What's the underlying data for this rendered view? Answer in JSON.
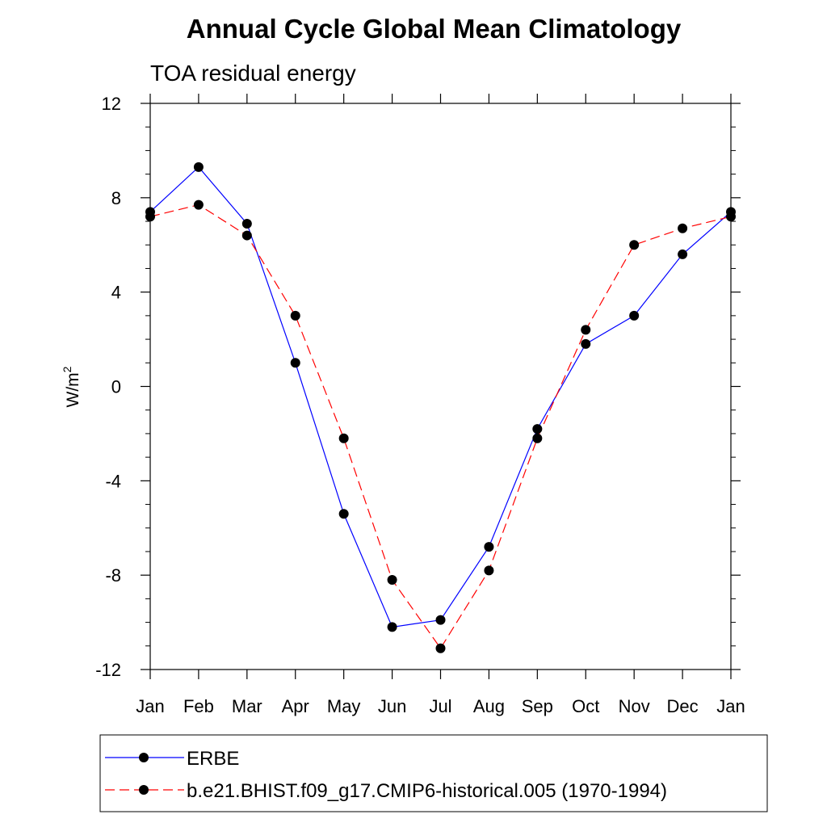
{
  "chart_data": {
    "type": "line",
    "title": "Annual Cycle Global Mean Climatology",
    "subtitle": "TOA residual energy",
    "ylabel": "W/m",
    "ylabel_superscript": "2",
    "ylim": [
      -12,
      12
    ],
    "yticks": [
      12,
      8,
      4,
      0,
      -4,
      -8,
      -12
    ],
    "ytick_labels": [
      "12",
      "8",
      "4",
      "0",
      "-4",
      "-8",
      "-12"
    ],
    "categories": [
      "Jan",
      "Feb",
      "Mar",
      "Apr",
      "May",
      "Jun",
      "Jul",
      "Aug",
      "Sep",
      "Oct",
      "Nov",
      "Dec",
      "Jan"
    ],
    "series": [
      {
        "name": "ERBE",
        "color": "#0000ff",
        "dash": "solid",
        "values": [
          7.4,
          9.3,
          6.9,
          1.0,
          -5.4,
          -10.2,
          -9.9,
          -6.8,
          -1.8,
          1.8,
          3.0,
          5.6,
          7.4
        ]
      },
      {
        "name": "b.e21.BHIST.f09_g17.CMIP6-historical.005 (1970-1994)",
        "color": "#ff0000",
        "dash": "dashed",
        "values": [
          7.2,
          7.7,
          6.4,
          3.0,
          -2.2,
          -8.2,
          -11.1,
          -7.8,
          -2.2,
          2.4,
          6.0,
          6.7,
          7.2
        ]
      }
    ],
    "legend_position": "bottom",
    "grid": false
  }
}
